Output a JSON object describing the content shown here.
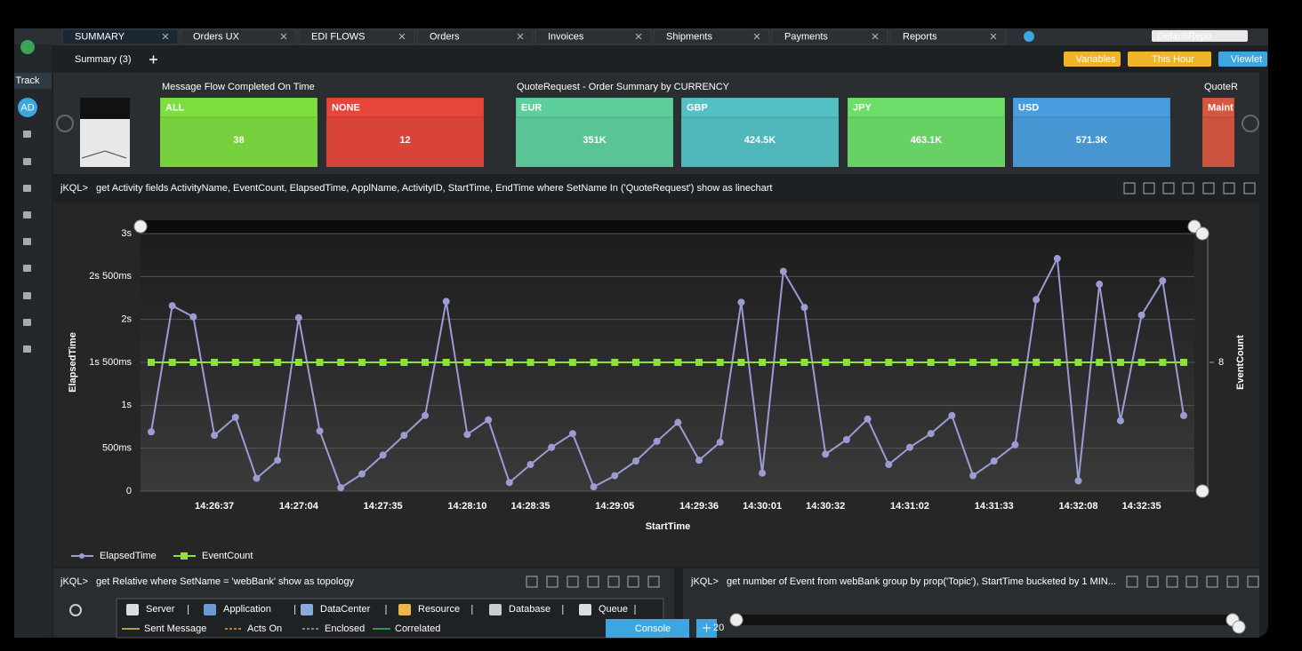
{
  "tabs": [
    "SUMMARY",
    "Orders UX",
    "EDI FLOWS",
    "Orders",
    "Invoices",
    "Shipments",
    "Payments",
    "Reports"
  ],
  "repo": "DefaultRepo",
  "toolbar": {
    "summary": "Summary (3)",
    "buttons": [
      "Variables",
      "This Hour",
      "Viewlet"
    ]
  },
  "sidebar": {
    "track": "Track",
    "user": "AD"
  },
  "widgets": [
    {
      "title": "Message Flow Completed On Time",
      "tiles": [
        {
          "label": "ALL",
          "value": "38"
        },
        {
          "label": "NONE",
          "value": "12"
        }
      ]
    },
    {
      "title": "QuoteRequest - Order Summary by CURRENCY",
      "tiles": [
        {
          "label": "EUR",
          "value": "351K"
        },
        {
          "label": "GBP",
          "value": "424.5K"
        },
        {
          "label": "JPY",
          "value": "463.1K"
        },
        {
          "label": "USD",
          "value": "571.3K"
        }
      ]
    },
    {
      "title": "QuoteR",
      "tiles": [
        {
          "label": "Maint"
        }
      ]
    }
  ],
  "prompt": "jKQL>",
  "query": "get Activity fields ActivityName, EventCount, ElapsedTime, ApplName, ActivityID, StartTime, EndTime where SetName In ('QuoteRequest') show as linechart",
  "chart_data": {
    "type": "line",
    "x_label": "StartTime",
    "y_label": "ElapsedTime",
    "y2_label": "EventCount",
    "categories": [
      null,
      null,
      null,
      "14:26:37",
      null,
      null,
      null,
      "14:27:04",
      null,
      null,
      null,
      "14:27:35",
      null,
      null,
      null,
      "14:28:10",
      null,
      null,
      "14:28:35",
      null,
      null,
      null,
      "14:29:05",
      null,
      null,
      null,
      "14:29:36",
      null,
      null,
      "14:30:01",
      null,
      null,
      "14:30:32",
      null,
      null,
      null,
      "14:31:02",
      null,
      null,
      null,
      "14:31:33",
      null,
      null,
      null,
      "14:32:08",
      null,
      null,
      "14:32:35",
      null,
      null
    ],
    "series": [
      {
        "name": "ElapsedTime",
        "color": "#9c9cd4",
        "values": [
          690,
          2160,
          2030,
          650,
          860,
          150,
          360,
          2020,
          700,
          40,
          200,
          420,
          650,
          880,
          2210,
          660,
          830,
          100,
          310,
          510,
          670,
          50,
          180,
          350,
          580,
          800,
          360,
          570,
          2200,
          210,
          2560,
          2140,
          430,
          600,
          840,
          310,
          510,
          670,
          880,
          180,
          350,
          540,
          2230,
          2710,
          120,
          2410,
          820,
          2050,
          2450,
          880
        ]
      },
      {
        "name": "EventCount",
        "color": "#8ee03a",
        "axis": "y2",
        "values": [
          8,
          8,
          8,
          8,
          8,
          8,
          8,
          8,
          8,
          8,
          8,
          8,
          8,
          8,
          8,
          8,
          8,
          8,
          8,
          8,
          8,
          8,
          8,
          8,
          8,
          8,
          8,
          8,
          8,
          8,
          8,
          8,
          8,
          8,
          8,
          8,
          8,
          8,
          8,
          8,
          8,
          8,
          8,
          8,
          8,
          8,
          8,
          8,
          8,
          8
        ]
      }
    ],
    "ylim": [
      0,
      3000
    ],
    "yticks": [
      0,
      {
        "value": 500,
        "label": "500ms"
      },
      {
        "value": 1000,
        "label": "1s"
      },
      {
        "value": 1500,
        "label": "1s 500ms"
      },
      {
        "value": 2000,
        "label": "2s"
      },
      {
        "value": 2500,
        "label": "2s 500ms"
      },
      {
        "value": 3000,
        "label": "3s"
      }
    ],
    "y2lim": [
      0,
      16
    ],
    "y2ticks": [
      8
    ],
    "grid": true
  },
  "bottom_left": {
    "query": "get Relative where SetName = 'webBank' show as topology",
    "nodes": [
      "Server",
      "Application",
      "DataCenter",
      "Resource",
      "Database",
      "Queue"
    ],
    "links": [
      "Sent Message",
      "Acts On",
      "Enclosed",
      "Correlated"
    ]
  },
  "bottom_right": {
    "query": "get number of Event from webBank group by prop('Topic'), StartTime bucketed by 1 MIN...",
    "tick": "20"
  },
  "console": "Console"
}
